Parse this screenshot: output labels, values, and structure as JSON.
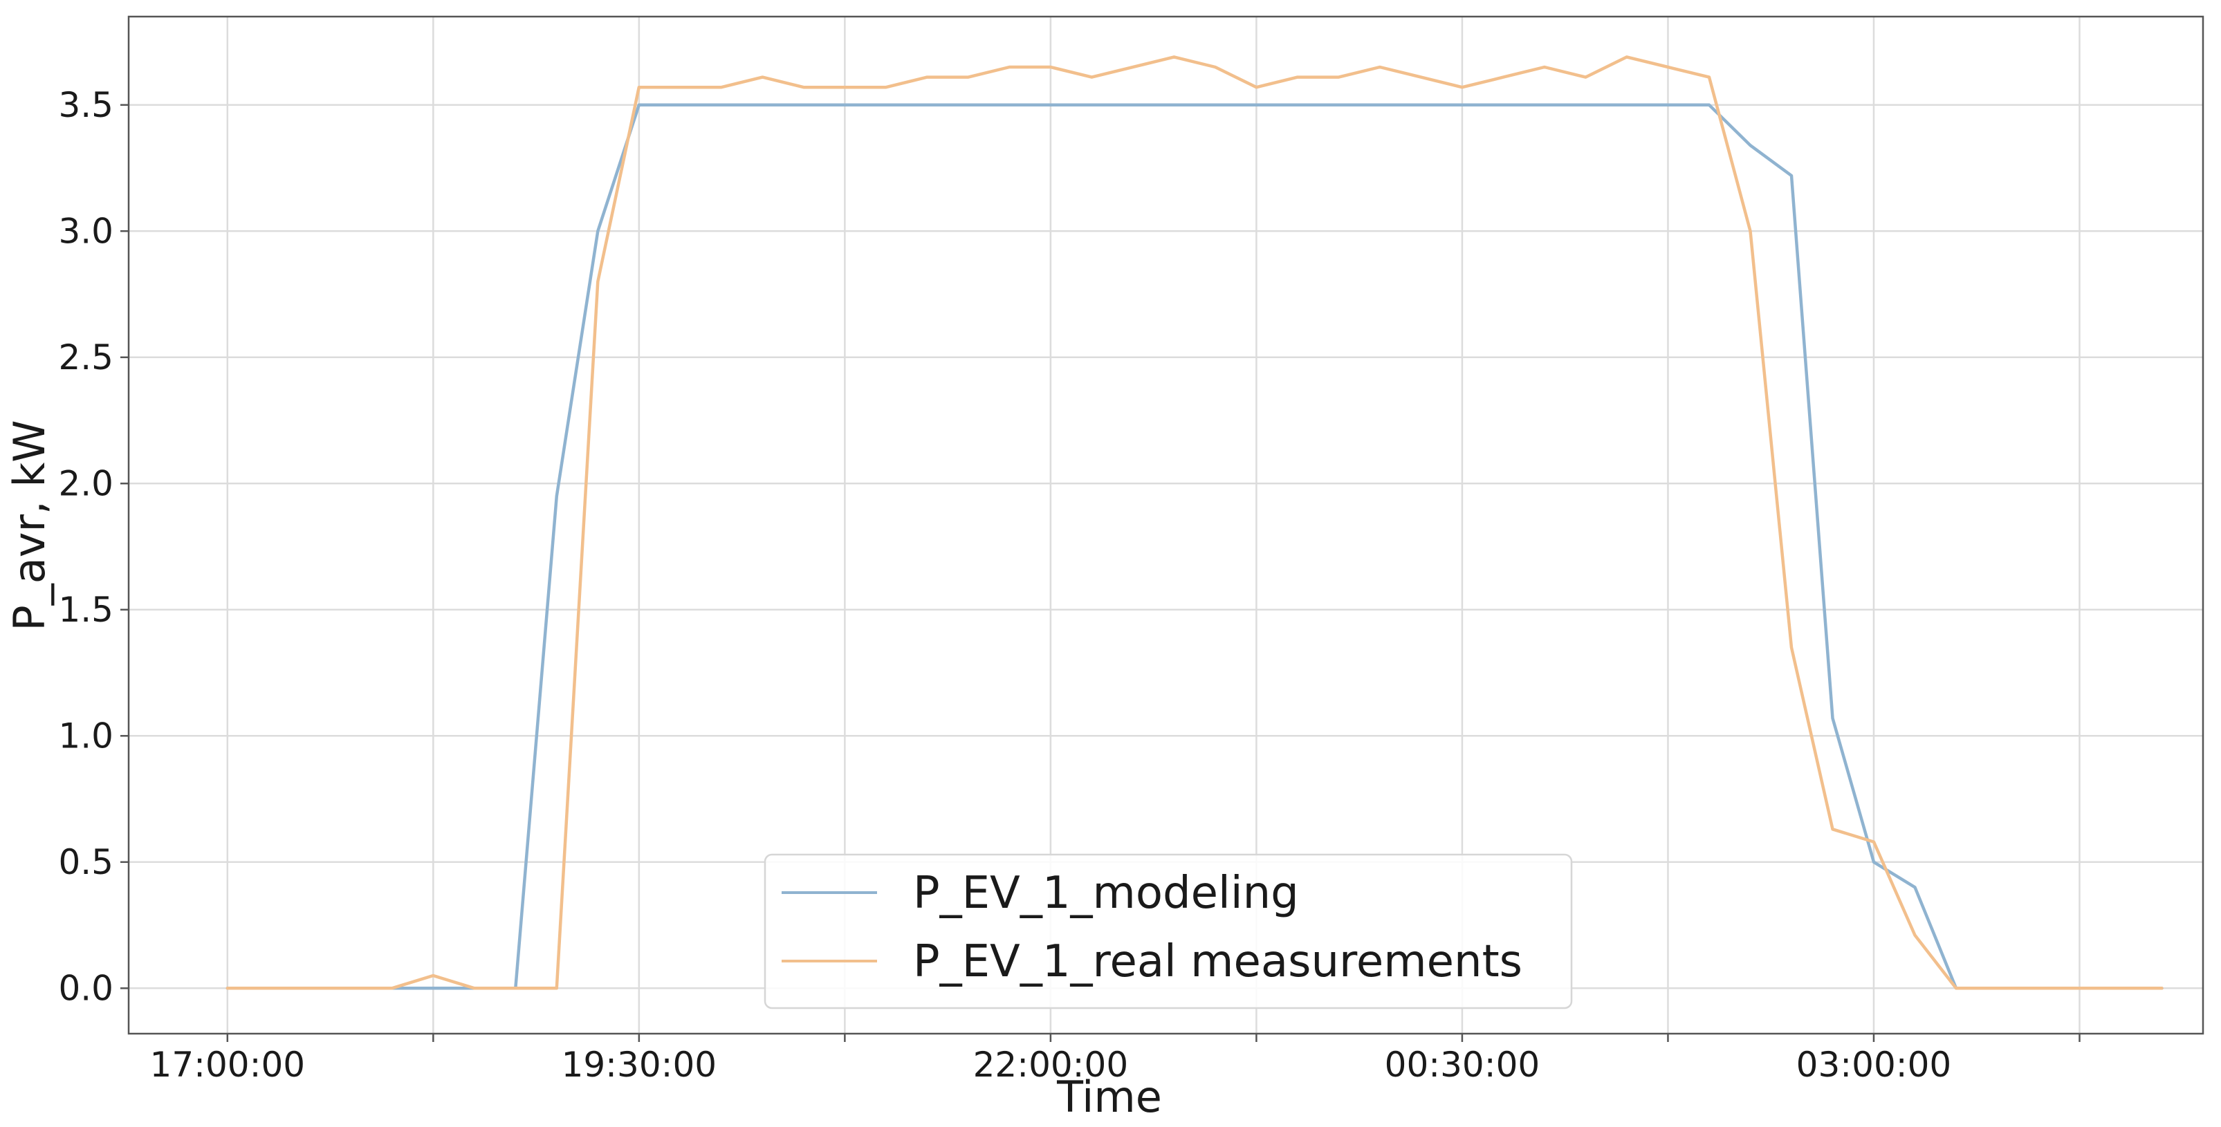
{
  "chart_data": {
    "type": "line",
    "title": "",
    "xlabel": "Time",
    "ylabel": "P_avr, kW",
    "x_tick_labels": [
      "17:00:00",
      "19:30:00",
      "22:00:00",
      "00:30:00",
      "03:00:00"
    ],
    "y_tick_labels": [
      "0.0",
      "0.5",
      "1.0",
      "1.5",
      "2.0",
      "2.5",
      "3.0",
      "3.5"
    ],
    "xlim": [
      "16:24",
      "05:00"
    ],
    "ylim": [
      -0.18,
      3.85
    ],
    "grid": true,
    "legend_position": "lower center",
    "series": [
      {
        "name": "P_EV_1_modeling",
        "color": "#8fb3d0",
        "points": [
          [
            "17:00",
            0.0
          ],
          [
            "18:00",
            0.0
          ],
          [
            "18:30",
            0.0
          ],
          [
            "18:45",
            0.0
          ],
          [
            "19:00",
            1.95
          ],
          [
            "19:15",
            3.0
          ],
          [
            "19:30",
            3.5
          ],
          [
            "20:00",
            3.5
          ],
          [
            "21:00",
            3.5
          ],
          [
            "22:00",
            3.5
          ],
          [
            "23:00",
            3.5
          ],
          [
            "00:00",
            3.5
          ],
          [
            "01:00",
            3.5
          ],
          [
            "02:00",
            3.5
          ],
          [
            "02:15",
            3.34
          ],
          [
            "02:30",
            3.22
          ],
          [
            "02:45",
            1.07
          ],
          [
            "03:00",
            0.5
          ],
          [
            "03:15",
            0.4
          ],
          [
            "03:30",
            0.0
          ],
          [
            "04:00",
            0.0
          ],
          [
            "04:45",
            0.0
          ]
        ]
      },
      {
        "name": "P_EV_1_real measurements",
        "color": "#f2bf8c",
        "points": [
          [
            "17:00",
            0.0
          ],
          [
            "18:00",
            0.0
          ],
          [
            "18:15",
            0.05
          ],
          [
            "18:30",
            0.0
          ],
          [
            "19:00",
            0.0
          ],
          [
            "19:15",
            2.8
          ],
          [
            "19:30",
            3.57
          ],
          [
            "20:00",
            3.57
          ],
          [
            "20:15",
            3.61
          ],
          [
            "20:30",
            3.57
          ],
          [
            "21:00",
            3.57
          ],
          [
            "21:15",
            3.61
          ],
          [
            "21:30",
            3.61
          ],
          [
            "21:45",
            3.65
          ],
          [
            "22:00",
            3.65
          ],
          [
            "22:15",
            3.61
          ],
          [
            "22:45",
            3.69
          ],
          [
            "23:00",
            3.65
          ],
          [
            "23:15",
            3.57
          ],
          [
            "23:30",
            3.61
          ],
          [
            "23:45",
            3.61
          ],
          [
            "00:00",
            3.65
          ],
          [
            "00:30",
            3.57
          ],
          [
            "00:45",
            3.61
          ],
          [
            "01:00",
            3.65
          ],
          [
            "01:15",
            3.61
          ],
          [
            "01:30",
            3.69
          ],
          [
            "02:00",
            3.61
          ],
          [
            "02:15",
            3.0
          ],
          [
            "02:30",
            1.35
          ],
          [
            "02:45",
            0.63
          ],
          [
            "03:00",
            0.58
          ],
          [
            "03:15",
            0.21
          ],
          [
            "03:30",
            0.0
          ],
          [
            "04:00",
            0.0
          ],
          [
            "04:45",
            0.0
          ]
        ]
      }
    ]
  }
}
